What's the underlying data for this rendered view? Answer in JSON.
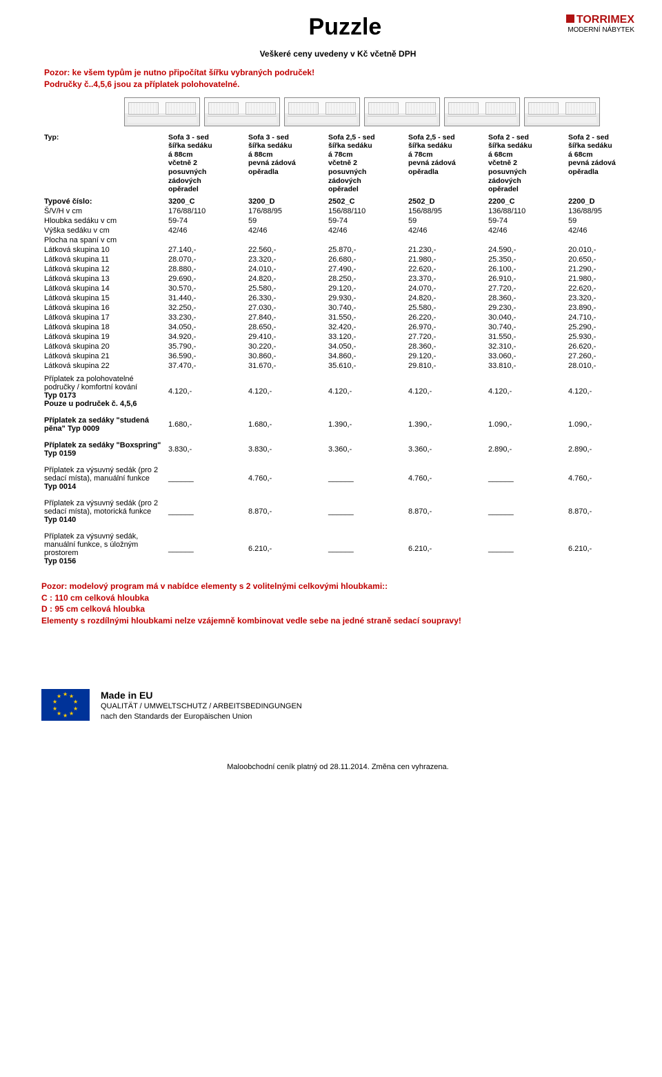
{
  "page": {
    "title": "Puzzle",
    "subtitle": "Veškeré ceny uvedeny v Kč včetně DPH",
    "warn_line1": "Pozor: ke všem typům je nutno připočítat šířku vybraných područek!",
    "warn_line2": "Područky č..4,5,6 jsou za příplatek polohovatelné.",
    "logo_brand": "TORRIMEX",
    "logo_sub": "MODERNÍ NÁBYTEK"
  },
  "headers": {
    "typ": "Typ:",
    "cols": [
      "Sofa 3 - sed\nšířka sedáku\ná 88cm\nvčetně 2\nposuvných\nzádových\nopěradel",
      "Sofa 3 - sed\nšířka sedáku\ná 88cm\npevná zádová\nopěradla",
      "Sofa 2,5 - sed\nšířka sedáku\ná 78cm\nvčetně 2\nposuvných\nzádových\nopěradel",
      "Sofa 2,5 - sed\nšířka sedáku\ná 78cm\npevná zádová\nopěradla",
      "Sofa 2 - sed\nšířka sedáku\ná 68cm\nvčetně 2\nposuvných\nzádových\nopěradel",
      "Sofa 2 - sed\nšířka sedáku\ná 68cm\npevná zádová\nopěradla"
    ]
  },
  "rows": [
    {
      "label": "Typové číslo:",
      "vals": [
        "3200_C",
        "3200_D",
        "2502_C",
        "2502_D",
        "2200_C",
        "2200_D"
      ],
      "bold": true
    },
    {
      "label": "Š/V/H v cm",
      "vals": [
        "176/88/110",
        "176/88/95",
        "156/88/110",
        "156/88/95",
        "136/88/110",
        "136/88/95"
      ]
    },
    {
      "label": "Hloubka sedáku v cm",
      "vals": [
        "59-74",
        "59",
        "59-74",
        "59",
        "59-74",
        "59"
      ]
    },
    {
      "label": "Výška sedáku v cm",
      "vals": [
        "42/46",
        "42/46",
        "42/46",
        "42/46",
        "42/46",
        "42/46"
      ]
    },
    {
      "label": "Plocha na spaní v cm",
      "vals": [
        "",
        "",
        "",
        "",
        "",
        ""
      ]
    },
    {
      "label": "Látková skupina 10",
      "vals": [
        "27.140,-",
        "22.560,-",
        "25.870,-",
        "21.230,-",
        "24.590,-",
        "20.010,-"
      ]
    },
    {
      "label": "Látková skupina 11",
      "vals": [
        "28.070,-",
        "23.320,-",
        "26.680,-",
        "21.980,-",
        "25.350,-",
        "20.650,-"
      ]
    },
    {
      "label": "Látková skupina 12",
      "vals": [
        "28.880,-",
        "24.010,-",
        "27.490,-",
        "22.620,-",
        "26.100,-",
        "21.290,-"
      ]
    },
    {
      "label": "Látková skupina 13",
      "vals": [
        "29.690,-",
        "24.820,-",
        "28.250,-",
        "23.370,-",
        "26.910,-",
        "21.980,-"
      ]
    },
    {
      "label": "Látková skupina 14",
      "vals": [
        "30.570,-",
        "25.580,-",
        "29.120,-",
        "24.070,-",
        "27.720,-",
        "22.620,-"
      ]
    },
    {
      "label": "Látková skupina 15",
      "vals": [
        "31.440,-",
        "26.330,-",
        "29.930,-",
        "24.820,-",
        "28.360,-",
        "23.320,-"
      ]
    },
    {
      "label": "Látková skupina 16",
      "vals": [
        "32.250,-",
        "27.030,-",
        "30.740,-",
        "25.580,-",
        "29.230,-",
        "23.890,-"
      ]
    },
    {
      "label": "Látková skupina 17",
      "vals": [
        "33.230,-",
        "27.840,-",
        "31.550,-",
        "26.220,-",
        "30.040,-",
        "24.710,-"
      ]
    },
    {
      "label": "Látková skupina 18",
      "vals": [
        "34.050,-",
        "28.650,-",
        "32.420,-",
        "26.970,-",
        "30.740,-",
        "25.290,-"
      ]
    },
    {
      "label": "Látková skupina 19",
      "vals": [
        "34.920,-",
        "29.410,-",
        "33.120,-",
        "27.720,-",
        "31.550,-",
        "25.930,-"
      ]
    },
    {
      "label": "Látková skupina 20",
      "vals": [
        "35.790,-",
        "30.220,-",
        "34.050,-",
        "28.360,-",
        "32.310,-",
        "26.620,-"
      ]
    },
    {
      "label": "Látková skupina 21",
      "vals": [
        "36.590,-",
        "30.860,-",
        "34.860,-",
        "29.120,-",
        "33.060,-",
        "27.260,-"
      ]
    },
    {
      "label": "Látková skupina 22",
      "vals": [
        "37.470,-",
        "31.670,-",
        "35.610,-",
        "29.810,-",
        "33.810,-",
        "28.010,-"
      ]
    }
  ],
  "surch": [
    {
      "label": "Příplatek za polohovatelné područky / komfortní kování\nTyp 0173\nPouze u područek č. 4,5,6",
      "vals": [
        "4.120,-",
        "4.120,-",
        "4.120,-",
        "4.120,-",
        "4.120,-",
        "4.120,-"
      ]
    },
    {
      "label": "Příplatek za sedáky \"studená pěna\" Typ 0009",
      "vals": [
        "1.680,-",
        "1.680,-",
        "1.390,-",
        "1.390,-",
        "1.090,-",
        "1.090,-"
      ]
    },
    {
      "label": "Příplatek za sedáky \"Boxspring\" Typ 0159",
      "vals": [
        "3.830,-",
        "3.830,-",
        "3.360,-",
        "3.360,-",
        "2.890,-",
        "2.890,-"
      ]
    },
    {
      "label": "Příplatek za výsuvný sedák (pro 2 sedací místa), manuální funkce\nTyp 0014",
      "vals": [
        "______",
        "4.760,-",
        "______",
        "4.760,-",
        "______",
        "4.760,-"
      ]
    },
    {
      "label": "Příplatek za výsuvný sedák (pro 2 sedací místa), motorická funkce\nTyp 0140",
      "vals": [
        "______",
        "8.870,-",
        "______",
        "8.870,-",
        "______",
        "8.870,-"
      ]
    },
    {
      "label": "Příplatek za výsuvný sedák, manuální funkce, s úložným prostorem\nTyp 0156",
      "vals": [
        "______",
        "6.210,-",
        "______",
        "6.210,-",
        "______",
        "6.210,-"
      ]
    }
  ],
  "note": {
    "l1": "Pozor: modelový program má v nabídce elementy s 2 volitelnými celkovými hloubkami::",
    "l2": "C : 110 cm celková hloubka",
    "l3": "D : 95 cm celková hloubka",
    "l4": "Elementy s rozdílnými hloubkami nelze vzájemně kombinovat vedle sebe na jedné straně sedací soupravy!"
  },
  "eu": {
    "title": "Made in EU",
    "l1": "QUALITÄT / UMWELTSCHUTZ / ARBEITSBEDINGUNGEN",
    "l2": "nach den Standards der Europäischen Union"
  },
  "footer": "Maloobchodní ceník platný od 28.11.2014.   Změna cen vyhrazena."
}
